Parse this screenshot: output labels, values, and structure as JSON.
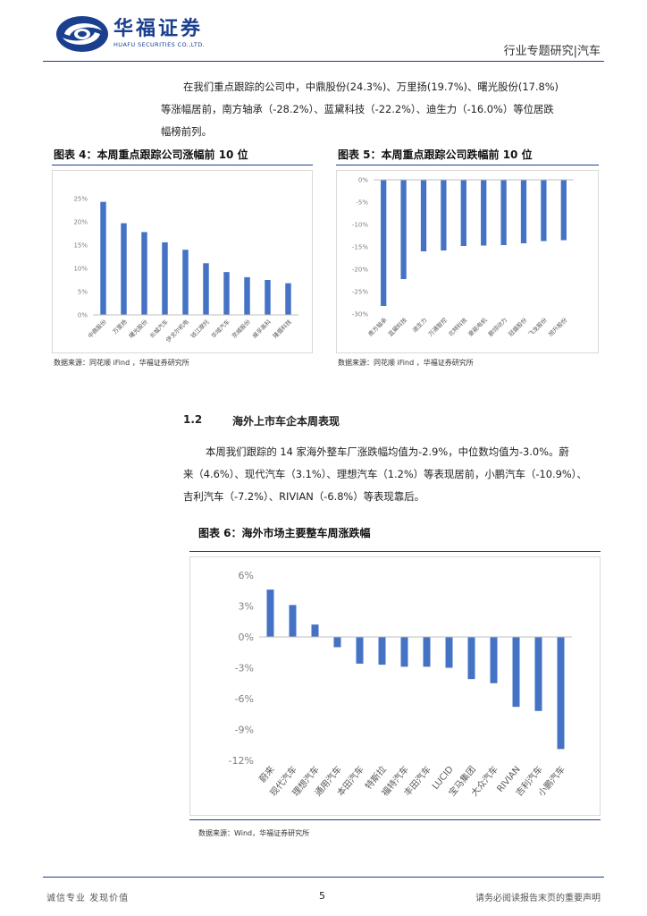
{
  "header": {
    "logo_cn": "华福证券",
    "logo_en": "HUAFU SECURITIES CO.,LTD.",
    "right_text": "行业专题研究|汽车"
  },
  "para1": {
    "lines": [
      "在我们重点跟踪的公司中，中鼎股份(24.3%)、万里扬(19.7%)、曙光股份(17.8%)",
      "等涨幅居前，南方轴承（-28.2%）、蓝黛科技（-22.2%）、迪生力（-16.0%）等位居跌",
      "幅榜前列。"
    ]
  },
  "fig4": {
    "title": "图表 4：本周重点跟踪公司涨幅前 10 位",
    "source": "数据来源：同花顺 iFind ，华福证券研究所",
    "chart_data": {
      "type": "bar",
      "categories": [
        "中鼎股份",
        "万里扬",
        "曙光股份",
        "长城汽车",
        "伊戈尔机电",
        "钱江摩托",
        "华域汽车",
        "京威股份",
        "威孚高科",
        "隆盛科技"
      ],
      "values": [
        24.3,
        19.7,
        17.8,
        15.6,
        14.0,
        11.1,
        9.2,
        8.1,
        7.5,
        6.8
      ],
      "yticks": [
        "25%",
        "20%",
        "15%",
        "10%",
        "5%",
        "0%"
      ],
      "ylim": [
        0,
        25
      ]
    }
  },
  "fig5": {
    "title": "图表 5：本周重点跟踪公司跌幅前 10 位",
    "source": "数据来源：同花顺 iFind ，华福证券研究所",
    "chart_data": {
      "type": "bar",
      "categories": [
        "南方轴承",
        "蓝黛科技",
        "迪生力",
        "万通智控",
        "北特科技",
        "豪能电机",
        "鹏翎动力",
        "冠盛股份",
        "飞龙股份",
        "旭升股份"
      ],
      "values": [
        -28.2,
        -22.2,
        -16.0,
        -15.8,
        -14.8,
        -14.7,
        -14.6,
        -14.2,
        -13.7,
        -13.5
      ],
      "yticks": [
        "0%",
        "-5%",
        "-10%",
        "-15%",
        "-20%",
        "-25%",
        "-30%"
      ],
      "ylim": [
        -30,
        0
      ]
    }
  },
  "section": {
    "number": "1.2",
    "title": "海外上市车企本周表现"
  },
  "para2": {
    "lines": [
      "本周我们跟踪的 14 家海外整车厂涨跌幅均值为-2.9%，中位数均值为-3.0%。蔚",
      "来（4.6%）、现代汽车（3.1%）、理想汽车（1.2%）等表现居前，小鹏汽车（-10.9%）、",
      "吉利汽车（-7.2%）、RIVIAN（-6.8%）等表现靠后。"
    ]
  },
  "fig6": {
    "title": "图表 6：海外市场主要整车周涨跌幅",
    "source": "数据来源：Wind，华福证券研究所",
    "chart_data": {
      "type": "bar",
      "categories": [
        "蔚来",
        "现代汽车",
        "理想汽车",
        "通用汽车",
        "本田汽车",
        "特斯拉",
        "福特汽车",
        "丰田汽车",
        "LUCID",
        "宝马集团",
        "大众汽车",
        "RIVIAN",
        "吉利汽车",
        "小鹏汽车"
      ],
      "values": [
        4.6,
        3.1,
        1.2,
        -1.0,
        -2.6,
        -2.7,
        -2.9,
        -2.9,
        -3.0,
        -4.1,
        -4.5,
        -6.8,
        -7.2,
        -10.9
      ],
      "yticks": [
        "6%",
        "3%",
        "0%",
        "-3%",
        "-6%",
        "-9%",
        "-12%"
      ],
      "ylim": [
        -12,
        6
      ]
    }
  },
  "footer": {
    "left": "诚信专业  发现价值",
    "page": "5",
    "right": "请务必阅读报告末页的重要声明"
  },
  "colors": {
    "bar": "#4472c4",
    "brand": "#1a3f8f"
  }
}
